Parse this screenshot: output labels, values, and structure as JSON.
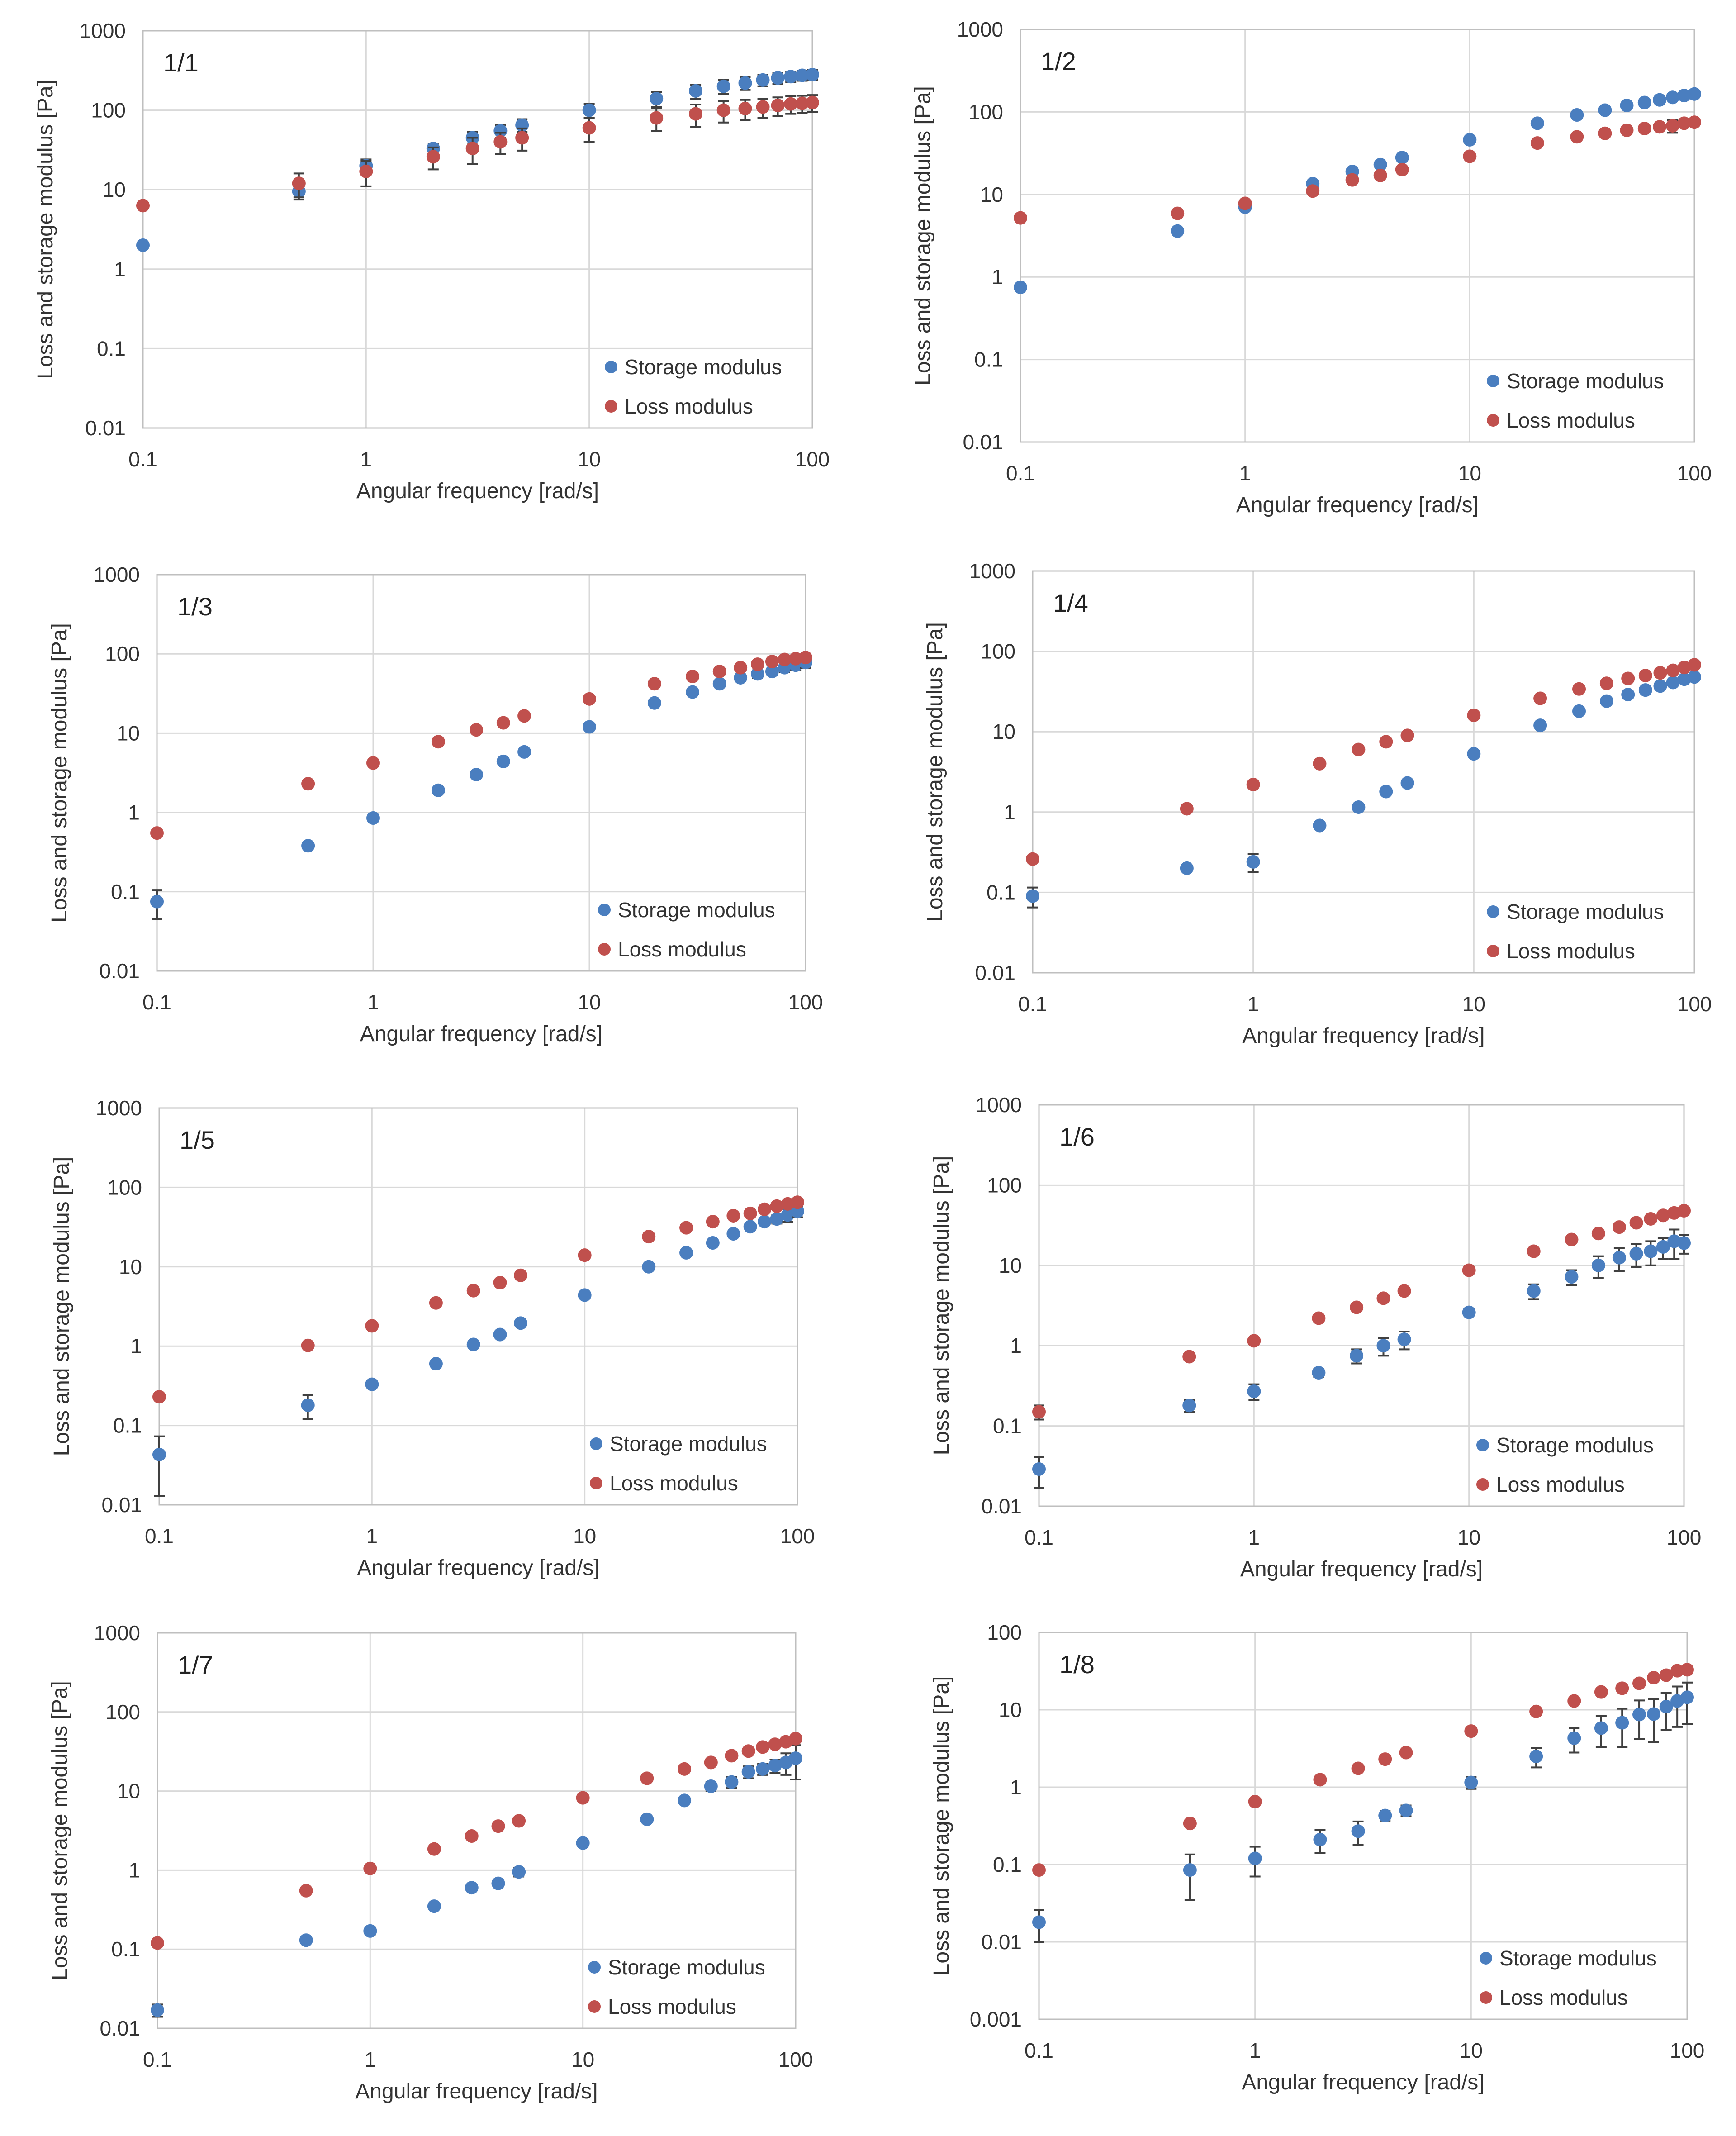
{
  "colors": {
    "storage": "#4a7ebf",
    "loss": "#c0504d",
    "grid": "#d9d9d9"
  },
  "chart_data": [
    {
      "type": "scatter",
      "title": "1/1",
      "xscale": "log",
      "yscale": "log",
      "xlabel": "Angular frequency [rad/s]",
      "ylabel": "Loss and storage modulus [Pa]",
      "xlim": [
        0.1,
        100
      ],
      "ylim": [
        0.01,
        1000
      ],
      "xticks": [
        "0.1",
        "1",
        "10",
        "100"
      ],
      "yticks": [
        "0.01",
        "0.1",
        "1",
        "10",
        "100",
        "1000"
      ],
      "legend": "bottom-right",
      "x": [
        0.1,
        0.5,
        1,
        2,
        3,
        4,
        5,
        10,
        20,
        30,
        40,
        50,
        60,
        70,
        80,
        90,
        100
      ],
      "series": [
        {
          "name": "Storage modulus",
          "values": [
            2.0,
            9.5,
            20,
            33,
            45,
            55,
            65,
            100,
            140,
            175,
            200,
            220,
            240,
            255,
            265,
            275,
            280
          ],
          "err": [
            0,
            2,
            4,
            5,
            8,
            10,
            12,
            20,
            30,
            35,
            40,
            40,
            40,
            40,
            40,
            40,
            40
          ]
        },
        {
          "name": "Loss modulus",
          "values": [
            6.3,
            12,
            17,
            26,
            33,
            40,
            45,
            60,
            80,
            90,
            100,
            105,
            110,
            115,
            120,
            122,
            125
          ],
          "err": [
            0,
            4,
            6,
            8,
            12,
            12,
            14,
            20,
            25,
            28,
            30,
            30,
            30,
            30,
            30,
            30,
            30
          ]
        }
      ]
    },
    {
      "type": "scatter",
      "title": "1/2",
      "xscale": "log",
      "yscale": "log",
      "xlabel": "Angular frequency [rad/s]",
      "ylabel": "Loss and storage modulus [Pa]",
      "xlim": [
        0.1,
        100
      ],
      "ylim": [
        0.01,
        1000
      ],
      "xticks": [
        "0.1",
        "1",
        "10",
        "100"
      ],
      "yticks": [
        "0.01",
        "0.1",
        "1",
        "10",
        "100",
        "1000"
      ],
      "legend": "bottom-right",
      "x": [
        0.1,
        0.5,
        1,
        2,
        3,
        4,
        5,
        10,
        20,
        30,
        40,
        50,
        60,
        70,
        80,
        90,
        100
      ],
      "series": [
        {
          "name": "Storage modulus",
          "values": [
            0.75,
            3.6,
            7,
            13.5,
            19,
            23,
            28,
            46,
            73,
            92,
            105,
            120,
            130,
            140,
            150,
            158,
            165
          ],
          "err": [
            0,
            0,
            0,
            0,
            0,
            0,
            0,
            4,
            5,
            5,
            5,
            5,
            5,
            5,
            5,
            5,
            5
          ]
        },
        {
          "name": "Loss modulus",
          "values": [
            5.2,
            5.9,
            7.8,
            11,
            15,
            17,
            20,
            29,
            42,
            50,
            55,
            60,
            63,
            66,
            68,
            73,
            75
          ],
          "err": [
            0,
            0,
            0,
            0,
            0,
            0,
            0,
            2,
            3,
            3,
            3,
            3,
            3,
            3,
            12,
            4,
            4
          ]
        }
      ]
    },
    {
      "type": "scatter",
      "title": "1/3",
      "xscale": "log",
      "yscale": "log",
      "xlabel": "Angular frequency [rad/s]",
      "ylabel": "Loss and storage modulus [Pa]",
      "xlim": [
        0.1,
        100
      ],
      "ylim": [
        0.01,
        1000
      ],
      "xticks": [
        "0.1",
        "1",
        "10",
        "100"
      ],
      "yticks": [
        "0.01",
        "0.1",
        "1",
        "10",
        "100",
        "1000"
      ],
      "legend": "bottom-right",
      "x": [
        0.1,
        0.5,
        1,
        2,
        3,
        4,
        5,
        10,
        20,
        30,
        40,
        50,
        60,
        70,
        80,
        90,
        100
      ],
      "series": [
        {
          "name": "Storage modulus",
          "values": [
            0.075,
            0.38,
            0.85,
            1.9,
            3.0,
            4.4,
            5.8,
            12,
            24,
            33,
            42,
            50,
            56,
            60,
            67,
            72,
            78
          ],
          "err": [
            0.03,
            0,
            0,
            0,
            0,
            0,
            0,
            0,
            2,
            3,
            4,
            5,
            6,
            6,
            8,
            10,
            12
          ]
        },
        {
          "name": "Loss modulus",
          "values": [
            0.55,
            2.3,
            4.2,
            7.8,
            11,
            13.5,
            16.5,
            27,
            42,
            52,
            60,
            67,
            74,
            80,
            85,
            87,
            90
          ],
          "err": [
            0,
            0,
            0,
            0,
            0,
            0,
            0,
            0,
            0,
            0,
            0,
            0,
            0,
            0,
            0,
            0,
            0
          ]
        }
      ]
    },
    {
      "type": "scatter",
      "title": "1/4",
      "xscale": "log",
      "yscale": "log",
      "xlabel": "Angular frequency [rad/s]",
      "ylabel": "Loss and storage modulus [Pa]",
      "xlim": [
        0.1,
        100
      ],
      "ylim": [
        0.01,
        1000
      ],
      "xticks": [
        "0.1",
        "1",
        "10",
        "100"
      ],
      "yticks": [
        "0.01",
        "0.1",
        "1",
        "10",
        "100",
        "1000"
      ],
      "legend": "bottom-right",
      "x": [
        0.1,
        0.5,
        1,
        2,
        3,
        4,
        5,
        10,
        20,
        30,
        40,
        50,
        60,
        70,
        80,
        90,
        100
      ],
      "series": [
        {
          "name": "Storage modulus",
          "values": [
            0.09,
            0.2,
            0.24,
            0.68,
            1.15,
            1.8,
            2.3,
            5.3,
            12,
            18,
            24,
            29,
            33,
            37,
            41,
            45,
            48
          ],
          "err": [
            0.025,
            0,
            0.06,
            0,
            0,
            0,
            0,
            0,
            0,
            0,
            0,
            0,
            0,
            0,
            0,
            0,
            0
          ]
        },
        {
          "name": "Loss modulus",
          "values": [
            0.26,
            1.1,
            2.2,
            4.0,
            6.0,
            7.5,
            9.0,
            16,
            26,
            34,
            40,
            46,
            50,
            54,
            58,
            63,
            68
          ],
          "err": [
            0,
            0,
            0,
            0,
            0,
            0,
            0,
            0,
            0,
            0,
            0,
            0,
            0,
            0,
            0,
            0,
            0
          ]
        }
      ]
    },
    {
      "type": "scatter",
      "title": "1/5",
      "xscale": "log",
      "yscale": "log",
      "xlabel": "Angular frequency  [rad/s]",
      "ylabel": "Loss and storage modulus [Pa]",
      "xlim": [
        0.1,
        100
      ],
      "ylim": [
        0.01,
        1000
      ],
      "xticks": [
        "0.1",
        "1",
        "10",
        "100"
      ],
      "yticks": [
        "0.01",
        "0.1",
        "1",
        "10",
        "100",
        "1000"
      ],
      "legend": "bottom-right",
      "x": [
        0.1,
        0.5,
        1,
        2,
        3,
        4,
        5,
        10,
        20,
        30,
        40,
        50,
        60,
        70,
        80,
        90,
        100
      ],
      "series": [
        {
          "name": "Storage modulus",
          "values": [
            0.043,
            0.18,
            0.33,
            0.6,
            1.05,
            1.4,
            1.95,
            4.4,
            10,
            15,
            20,
            26,
            32,
            37,
            40,
            45,
            50
          ],
          "err": [
            0.03,
            0.06,
            0,
            0,
            0,
            0,
            0,
            0,
            0,
            0,
            0,
            0,
            0,
            0,
            5,
            8,
            8
          ]
        },
        {
          "name": "Loss modulus",
          "values": [
            0.23,
            1.02,
            1.8,
            3.5,
            5.0,
            6.3,
            7.8,
            14,
            24,
            31,
            37,
            44,
            47,
            53,
            58,
            62,
            65
          ],
          "err": [
            0,
            0,
            0,
            0,
            0,
            0,
            0,
            0,
            0,
            0,
            0,
            0,
            0,
            0,
            0,
            0,
            0
          ]
        }
      ]
    },
    {
      "type": "scatter",
      "title": "1/6",
      "xscale": "log",
      "yscale": "log",
      "xlabel": "Angular frequency [rad/s]",
      "ylabel": "Loss and storage modulus [Pa]",
      "xlim": [
        0.1,
        100
      ],
      "ylim": [
        0.01,
        1000
      ],
      "xticks": [
        "0.1",
        "1",
        "10",
        "100"
      ],
      "yticks": [
        "0.01",
        "0.1",
        "1",
        "10",
        "100",
        "1000"
      ],
      "legend": "bottom-right",
      "x": [
        0.1,
        0.5,
        1,
        2,
        3,
        4,
        5,
        10,
        20,
        30,
        40,
        50,
        60,
        70,
        80,
        90,
        100
      ],
      "series": [
        {
          "name": "Storage modulus",
          "values": [
            0.029,
            0.18,
            0.27,
            0.46,
            0.75,
            1.0,
            1.2,
            2.6,
            4.8,
            7.2,
            10,
            12.5,
            14,
            15,
            17,
            20,
            19
          ],
          "err": [
            0.012,
            0.03,
            0.06,
            0.05,
            0.15,
            0.25,
            0.3,
            0,
            1,
            1.5,
            3,
            4,
            4.5,
            5,
            5,
            8,
            5
          ]
        },
        {
          "name": "Loss modulus",
          "values": [
            0.15,
            0.73,
            1.15,
            2.2,
            3.0,
            3.9,
            4.8,
            8.7,
            15,
            21,
            25,
            30,
            34,
            38,
            42,
            45,
            48
          ],
          "err": [
            0.03,
            0,
            0,
            0,
            0,
            0,
            0,
            0,
            0,
            0,
            0,
            0,
            0,
            0,
            0,
            0,
            0
          ]
        }
      ]
    },
    {
      "type": "scatter",
      "title": "1/7",
      "xscale": "log",
      "yscale": "log",
      "xlabel": "Angular frequency [rad/s]",
      "ylabel": "Loss and storage modulus [Pa]",
      "xlim": [
        0.1,
        100
      ],
      "ylim": [
        0.01,
        1000
      ],
      "xticks": [
        "0.1",
        "1",
        "10",
        "100"
      ],
      "yticks": [
        "0.01",
        "0.1",
        "1",
        "10",
        "100",
        "1000"
      ],
      "legend": "bottom-right",
      "x": [
        0.1,
        0.5,
        1,
        2,
        3,
        4,
        5,
        10,
        20,
        30,
        40,
        50,
        60,
        70,
        80,
        90,
        100
      ],
      "series": [
        {
          "name": "Storage modulus",
          "values": [
            0.017,
            0.13,
            0.17,
            0.35,
            0.6,
            0.68,
            0.95,
            2.2,
            4.4,
            7.6,
            11.5,
            13,
            17.5,
            19,
            21,
            23,
            26
          ],
          "err": [
            0.003,
            0.01,
            0.02,
            0.03,
            0,
            0,
            0.12,
            0,
            0,
            0,
            1.5,
            2,
            3,
            3,
            4,
            7,
            12
          ]
        },
        {
          "name": "Loss modulus",
          "values": [
            0.12,
            0.55,
            1.05,
            1.85,
            2.7,
            3.6,
            4.2,
            8.2,
            14.5,
            19,
            23,
            28,
            32,
            36,
            39,
            42,
            46
          ],
          "err": [
            0,
            0,
            0,
            0,
            0,
            0,
            0,
            0,
            0,
            0,
            0,
            0,
            0,
            0,
            0,
            0,
            0
          ]
        }
      ]
    },
    {
      "type": "scatter",
      "title": "1/8",
      "xscale": "log",
      "yscale": "log",
      "xlabel": "Angular frequency [rad/s]",
      "ylabel": "Loss and storage modulus [Pa]",
      "xlim": [
        0.1,
        100
      ],
      "ylim": [
        0.001,
        100
      ],
      "xticks": [
        "0.1",
        "1",
        "10",
        "100"
      ],
      "yticks": [
        "0.001",
        "0.01",
        "0.1",
        "1",
        "10",
        "100"
      ],
      "legend": "bottom-right",
      "x": [
        0.1,
        0.5,
        1,
        2,
        3,
        4,
        5,
        10,
        20,
        30,
        40,
        50,
        60,
        70,
        80,
        90,
        100
      ],
      "series": [
        {
          "name": "Storage modulus",
          "values": [
            0.018,
            0.085,
            0.12,
            0.21,
            0.27,
            0.43,
            0.5,
            1.15,
            2.5,
            4.3,
            5.8,
            6.8,
            8.7,
            8.8,
            11,
            13,
            14.5
          ],
          "err": [
            0.008,
            0.05,
            0.05,
            0.07,
            0.09,
            0.06,
            0.08,
            0.2,
            0.7,
            1.5,
            2.5,
            3.5,
            4.5,
            5,
            5.5,
            7,
            8
          ]
        },
        {
          "name": "Loss modulus",
          "values": [
            0.085,
            0.34,
            0.65,
            1.25,
            1.75,
            2.3,
            2.8,
            5.3,
            9.5,
            13,
            17,
            19,
            22,
            26,
            28,
            32,
            33
          ],
          "err": [
            0,
            0,
            0,
            0,
            0,
            0,
            0,
            0,
            0,
            0,
            0,
            0,
            0,
            0,
            0,
            0,
            0
          ]
        }
      ]
    }
  ]
}
